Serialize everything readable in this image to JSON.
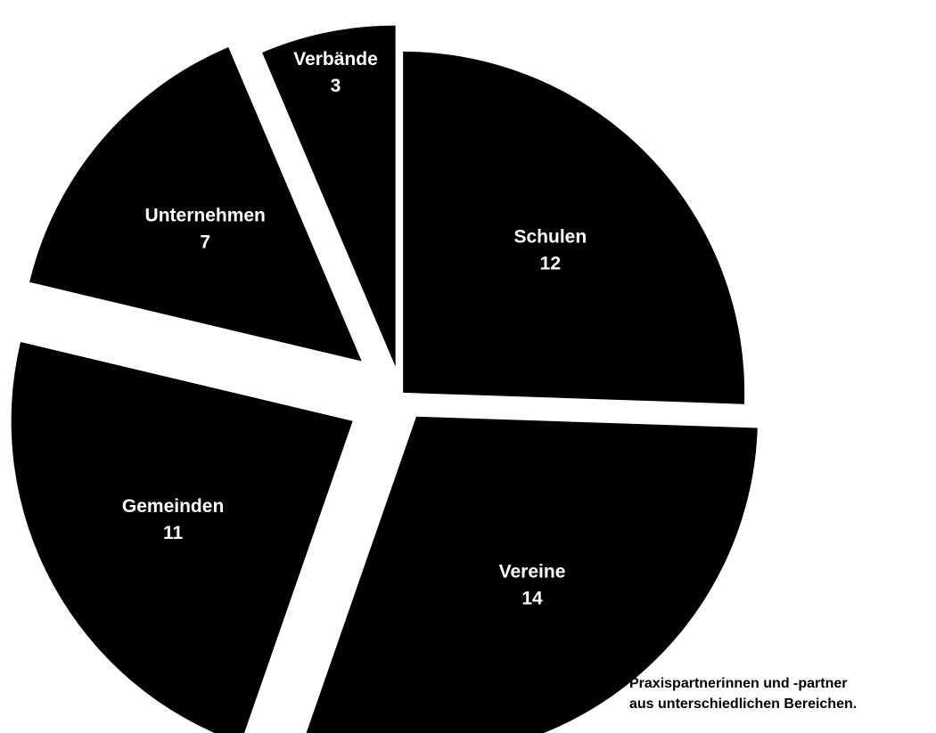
{
  "chart_data": {
    "type": "pie",
    "categories": [
      "Schulen",
      "Vereine",
      "Gemeinden",
      "Unternehmen",
      "Verbände"
    ],
    "values": [
      12,
      14,
      11,
      7,
      3
    ],
    "color": "#000000",
    "caption": [
      "Praxispartnerinnen und -partner",
      "aus unterschiedlichen Bereichen."
    ]
  }
}
